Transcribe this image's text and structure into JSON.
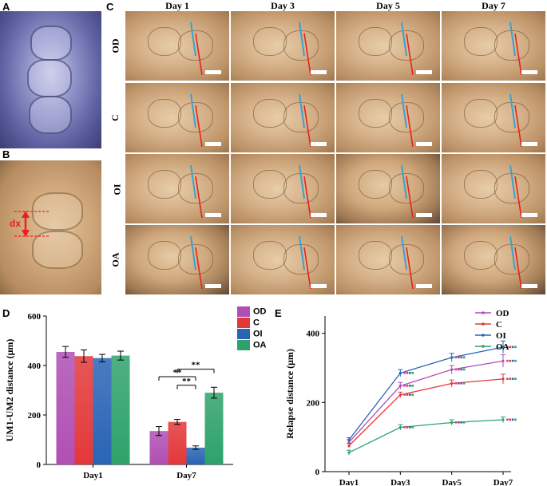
{
  "panels": {
    "a": {
      "letter": "A"
    },
    "b": {
      "letter": "B",
      "measure_label": "dx"
    },
    "c": {
      "letter": "C",
      "columns": [
        "Day 1",
        "Day 3",
        "Day 5",
        "Day 7"
      ],
      "rows": [
        "OD",
        "C",
        "OI",
        "OA"
      ]
    },
    "d": {
      "letter": "D"
    },
    "e": {
      "letter": "E"
    }
  },
  "colors": {
    "line_red": "#e8201e",
    "line_blue": "#3aa0d0",
    "OD": "#b04fb3",
    "C": "#e3383a",
    "OI": "#2a64b5",
    "OA": "#2ea26a"
  },
  "chart_data": [
    {
      "type": "bar",
      "ylabel": "UM1-UM2 distance (μm)",
      "xlabel": "",
      "categories": [
        "Day1",
        "Day7"
      ],
      "ylim": [
        0,
        600
      ],
      "yticks": [
        0,
        200,
        400,
        600
      ],
      "legend_position": "top-right",
      "series": [
        {
          "name": "OD",
          "values": [
            455,
            135
          ],
          "errors": [
            22,
            18
          ]
        },
        {
          "name": "C",
          "values": [
            438,
            172
          ],
          "errors": [
            25,
            10
          ]
        },
        {
          "name": "OI",
          "values": [
            430,
            68
          ],
          "errors": [
            15,
            7
          ]
        },
        {
          "name": "OA",
          "values": [
            440,
            290
          ],
          "errors": [
            18,
            22
          ]
        }
      ],
      "annotations": [
        "**",
        "**",
        "**"
      ]
    },
    {
      "type": "line",
      "ylabel": "Relapse distance (μm)",
      "xlabel": "",
      "categories": [
        "Day1",
        "Day3",
        "Day5",
        "Day7"
      ],
      "ylim": [
        0,
        450
      ],
      "yticks": [
        0,
        200,
        400
      ],
      "legend_position": "top-right",
      "series": [
        {
          "name": "OD",
          "values": [
            85,
            248,
            295,
            320
          ],
          "errors": [
            7,
            10,
            12,
            18
          ]
        },
        {
          "name": "C",
          "values": [
            75,
            222,
            255,
            268
          ],
          "errors": [
            7,
            8,
            10,
            14
          ]
        },
        {
          "name": "OI",
          "values": [
            92,
            285,
            330,
            360
          ],
          "errors": [
            6,
            10,
            12,
            18
          ]
        },
        {
          "name": "OA",
          "values": [
            55,
            128,
            142,
            150
          ],
          "errors": [
            7,
            8,
            8,
            8
          ]
        }
      ]
    }
  ]
}
